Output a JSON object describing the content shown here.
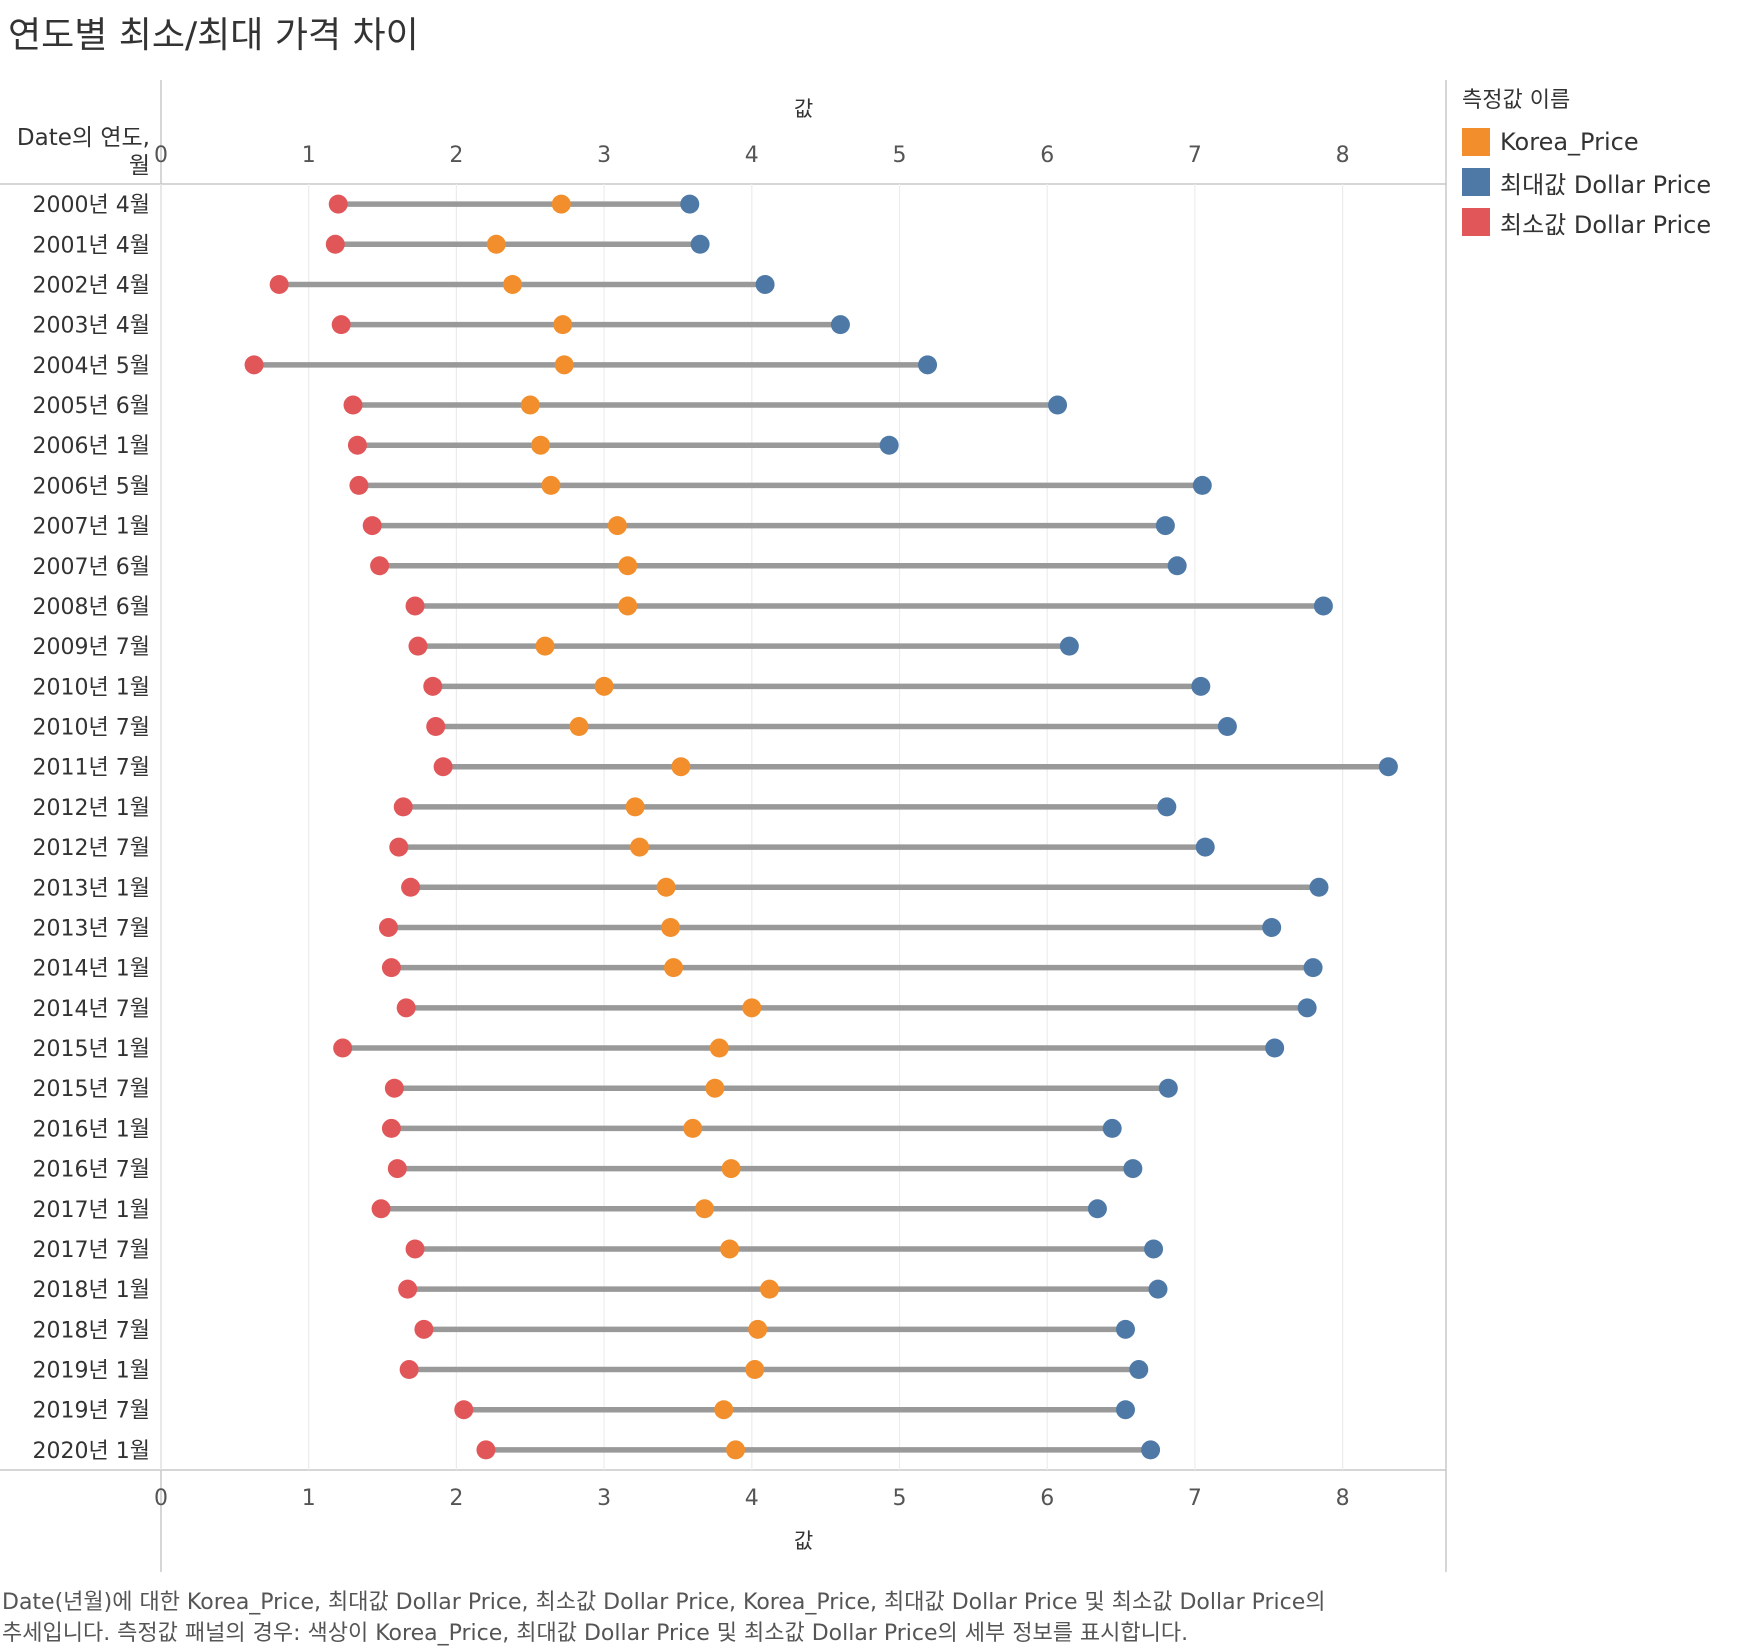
{
  "title": "연도별 최소/최대 가격 차이",
  "legend": {
    "title": "측정값 이름",
    "items": [
      {
        "label": "Korea_Price",
        "color": "#f28e2b"
      },
      {
        "label": "최대값 Dollar Price",
        "color": "#4e79a7"
      },
      {
        "label": "최소값 Dollar Price",
        "color": "#e15759"
      }
    ]
  },
  "caption": {
    "line1": "Date(년월)에 대한 Korea_Price, 최대값 Dollar Price, 최소값 Dollar Price, Korea_Price, 최대값 Dollar Price 및 최소값 Dollar Price의",
    "line2": "추세입니다.  측정값 패널의 경우:  색상이 Korea_Price, 최대값 Dollar Price 및 최소값 Dollar Price의 세부 정보를 표시합니다."
  },
  "chart_data": {
    "type": "dumbbell",
    "title": "연도별 최소/최대 가격 차이",
    "row_header": "Date의 연도, 월",
    "xlabel": "값",
    "xlim": [
      0,
      8.7
    ],
    "xticks": [
      0,
      1,
      2,
      3,
      4,
      5,
      6,
      7,
      8
    ],
    "grid": true,
    "legend_position": "right",
    "categories": [
      "2000년 4월",
      "2001년 4월",
      "2002년 4월",
      "2003년 4월",
      "2004년 5월",
      "2005년 6월",
      "2006년 1월",
      "2006년 5월",
      "2007년 1월",
      "2007년 6월",
      "2008년 6월",
      "2009년 7월",
      "2010년 1월",
      "2010년 7월",
      "2011년 7월",
      "2012년 1월",
      "2012년 7월",
      "2013년 1월",
      "2013년 7월",
      "2014년 1월",
      "2014년 7월",
      "2015년 1월",
      "2015년 7월",
      "2016년 1월",
      "2016년 7월",
      "2017년 1월",
      "2017년 7월",
      "2018년 1월",
      "2018년 7월",
      "2019년 1월",
      "2019년 7월",
      "2020년 1월"
    ],
    "series": [
      {
        "name": "Korea_Price",
        "color": "#f28e2b",
        "values": [
          2.71,
          2.27,
          2.38,
          2.72,
          2.73,
          2.5,
          2.57,
          2.64,
          3.09,
          3.16,
          3.16,
          2.6,
          3.0,
          2.83,
          3.52,
          3.21,
          3.24,
          3.42,
          3.45,
          3.47,
          4.0,
          3.78,
          3.75,
          3.6,
          3.86,
          3.68,
          3.85,
          4.12,
          4.04,
          4.02,
          3.81,
          3.89
        ]
      },
      {
        "name": "최대값 Dollar Price",
        "color": "#4e79a7",
        "values": [
          3.58,
          3.65,
          4.09,
          4.6,
          5.19,
          6.07,
          4.93,
          7.05,
          6.8,
          6.88,
          7.87,
          6.15,
          7.04,
          7.22,
          8.31,
          6.81,
          7.07,
          7.84,
          7.52,
          7.8,
          7.76,
          7.54,
          6.82,
          6.44,
          6.58,
          6.34,
          6.72,
          6.75,
          6.53,
          6.62,
          6.53,
          6.7
        ]
      },
      {
        "name": "최소값 Dollar Price",
        "color": "#e15759",
        "values": [
          1.2,
          1.18,
          0.8,
          1.22,
          0.63,
          1.3,
          1.33,
          1.34,
          1.43,
          1.48,
          1.72,
          1.74,
          1.84,
          1.86,
          1.91,
          1.64,
          1.61,
          1.69,
          1.54,
          1.56,
          1.66,
          1.23,
          1.58,
          1.56,
          1.6,
          1.49,
          1.72,
          1.67,
          1.78,
          1.68,
          2.05,
          2.2
        ]
      }
    ]
  }
}
